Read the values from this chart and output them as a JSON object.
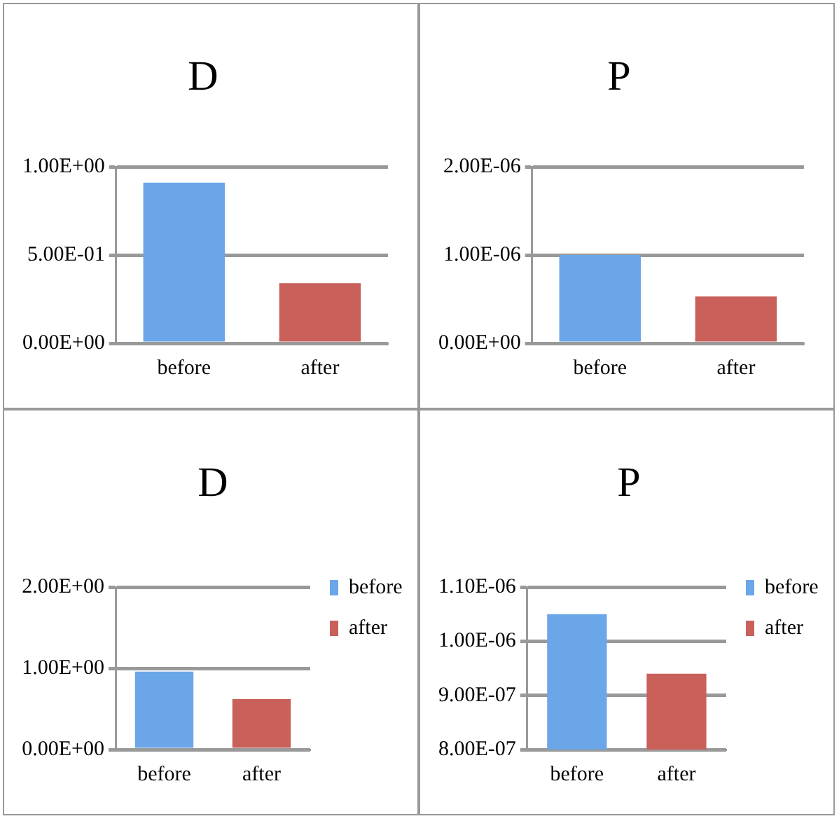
{
  "chart_data": [
    {
      "type": "bar",
      "title": "D",
      "categories": [
        "before",
        "after"
      ],
      "values": [
        0.91,
        0.34
      ],
      "colors": [
        "#6aa6e8",
        "#c9605a"
      ],
      "ylim": [
        0,
        1
      ],
      "yticks": [
        {
          "value": 0,
          "label": "0.00E+00"
        },
        {
          "value": 0.5,
          "label": "5.00E-01"
        },
        {
          "value": 1,
          "label": "1.00E+00"
        }
      ],
      "grid": "y"
    },
    {
      "type": "bar",
      "title": "P",
      "categories": [
        "before",
        "after"
      ],
      "values": [
        1e-06,
        5.3e-07
      ],
      "colors": [
        "#6aa6e8",
        "#c9605a"
      ],
      "ylim": [
        0,
        2e-06
      ],
      "yticks": [
        {
          "value": 0,
          "label": "0.00E+00"
        },
        {
          "value": 1e-06,
          "label": "1.00E-06"
        },
        {
          "value": 2e-06,
          "label": "2.00E-06"
        }
      ],
      "grid": "y"
    },
    {
      "type": "bar",
      "title": "D",
      "categories": [
        "before",
        "after"
      ],
      "series": [
        {
          "name": "before",
          "color": "#6aa6e8",
          "values": [
            0.96,
            null
          ]
        },
        {
          "name": "after",
          "color": "#c9605a",
          "values": [
            null,
            0.62
          ]
        }
      ],
      "ylim": [
        0,
        2
      ],
      "yticks": [
        {
          "value": 0,
          "label": "0.00E+00"
        },
        {
          "value": 1,
          "label": "1.00E+00"
        },
        {
          "value": 2,
          "label": "2.00E+00"
        }
      ],
      "grid": "y",
      "legend": "right"
    },
    {
      "type": "bar",
      "title": "P",
      "categories": [
        "before",
        "after"
      ],
      "series": [
        {
          "name": "before",
          "color": "#6aa6e8",
          "values": [
            1.05e-06,
            null
          ]
        },
        {
          "name": "after",
          "color": "#c9605a",
          "values": [
            null,
            9.4e-07
          ]
        }
      ],
      "ylim": [
        8e-07,
        1.1e-06
      ],
      "yticks": [
        {
          "value": 8e-07,
          "label": "8.00E-07"
        },
        {
          "value": 9e-07,
          "label": "9.00E-07"
        },
        {
          "value": 1e-06,
          "label": "1.00E-06"
        },
        {
          "value": 1.1e-06,
          "label": "1.10E-06"
        }
      ],
      "grid": "y",
      "legend": "right"
    }
  ]
}
